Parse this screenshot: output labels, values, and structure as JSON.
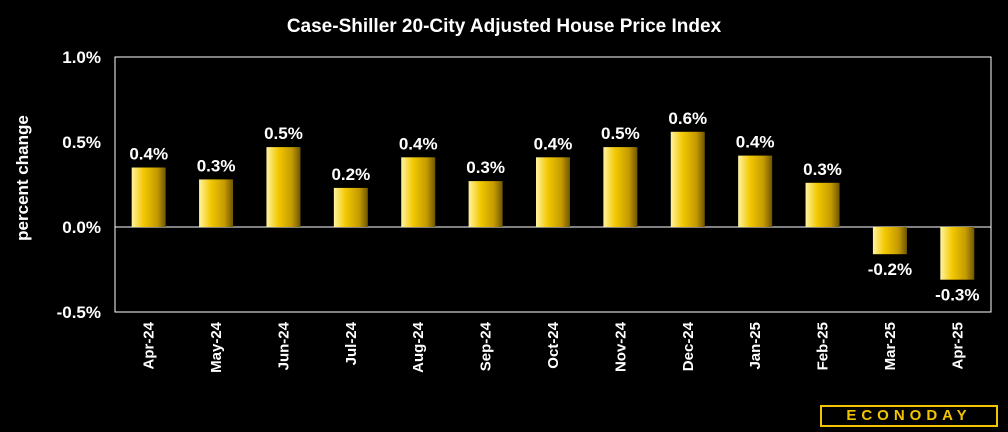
{
  "chart_data": {
    "type": "bar",
    "title": "Case-Shiller 20-City Adjusted House Price Index",
    "ylabel": "percent change",
    "xlabel": "",
    "ylim": [
      -0.5,
      1.0
    ],
    "yticks": [
      1.0,
      0.5,
      0.0,
      -0.5
    ],
    "ytick_labels": [
      "1.0%",
      "0.5%",
      "0.0%",
      "-0.5%"
    ],
    "grid": false,
    "categories": [
      "Apr-24",
      "May-24",
      "Jun-24",
      "Jul-24",
      "Aug-24",
      "Sep-24",
      "Oct-24",
      "Nov-24",
      "Dec-24",
      "Jan-25",
      "Feb-25",
      "Mar-25",
      "Apr-25"
    ],
    "values": [
      0.35,
      0.28,
      0.47,
      0.23,
      0.41,
      0.27,
      0.41,
      0.47,
      0.56,
      0.42,
      0.26,
      -0.16,
      -0.31
    ],
    "data_labels": [
      "0.4%",
      "0.3%",
      "0.5%",
      "0.2%",
      "0.4%",
      "0.3%",
      "0.4%",
      "0.5%",
      "0.6%",
      "0.4%",
      "0.3%",
      "-0.2%",
      "-0.3%"
    ],
    "bar_color": "#f0c400"
  },
  "logo": {
    "text": "ECONODAY"
  }
}
